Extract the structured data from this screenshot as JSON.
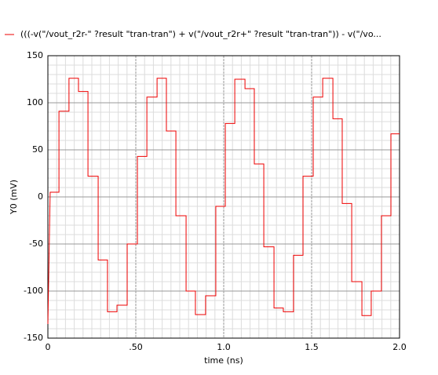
{
  "chart_data": {
    "type": "line",
    "xlabel": "time (ns)",
    "ylabel": "Y0 (mV)",
    "xlim": [
      0,
      2.0
    ],
    "ylim": [
      -150,
      150
    ],
    "xticks": [
      0,
      {
        "value": 0.5,
        "label": ".50"
      },
      {
        "value": 1.0,
        "label": "1.0"
      },
      1.5,
      {
        "value": 2.0,
        "label": "2.0"
      }
    ],
    "yticks": [
      -150,
      -100,
      -50,
      0,
      50,
      100,
      150
    ],
    "grid": true,
    "legend": "top-left",
    "x": [
      0,
      0.013,
      0.063,
      0.063,
      0.12,
      0.12,
      0.174,
      0.174,
      0.228,
      0.228,
      0.286,
      0.286,
      0.339,
      0.339,
      0.393,
      0.393,
      0.451,
      0.451,
      0.509,
      0.509,
      0.563,
      0.563,
      0.621,
      0.621,
      0.674,
      0.674,
      0.728,
      0.728,
      0.786,
      0.786,
      0.839,
      0.839,
      0.897,
      0.897,
      0.955,
      0.955,
      1.009,
      1.009,
      1.063,
      1.063,
      1.121,
      1.121,
      1.174,
      1.174,
      1.228,
      1.228,
      1.286,
      1.286,
      1.339,
      1.339,
      1.397,
      1.397,
      1.451,
      1.451,
      1.509,
      1.509,
      1.563,
      1.563,
      1.621,
      1.621,
      1.674,
      1.674,
      1.728,
      1.728,
      1.786,
      1.786,
      1.839,
      1.839,
      1.897,
      1.897,
      1.951,
      1.951,
      2.0
    ],
    "series": [
      {
        "name": "(((-v(\"/vout_r2r-\" ?result \"tran-tran\") + v(\"/vout_r2r+\" ?result \"tran-tran\")) - v(\"/vo...",
        "color": "#ee0000",
        "values": [
          -135,
          5,
          5,
          91,
          91,
          126,
          126,
          112,
          112,
          22,
          22,
          -67,
          -67,
          -122,
          -122,
          -115,
          -115,
          -50,
          -50,
          43,
          43,
          106,
          106,
          126,
          126,
          70,
          70,
          -20,
          -20,
          -100,
          -100,
          -125,
          -125,
          -105,
          -105,
          -10,
          -10,
          78,
          78,
          125,
          125,
          115,
          115,
          35,
          35,
          -53,
          -53,
          -118,
          -118,
          -122,
          -122,
          -62,
          -62,
          22,
          22,
          106,
          106,
          126,
          126,
          83,
          83,
          -7,
          -7,
          -90,
          -90,
          -126,
          -126,
          -100,
          -100,
          -20,
          -20,
          67,
          67
        ]
      }
    ]
  }
}
